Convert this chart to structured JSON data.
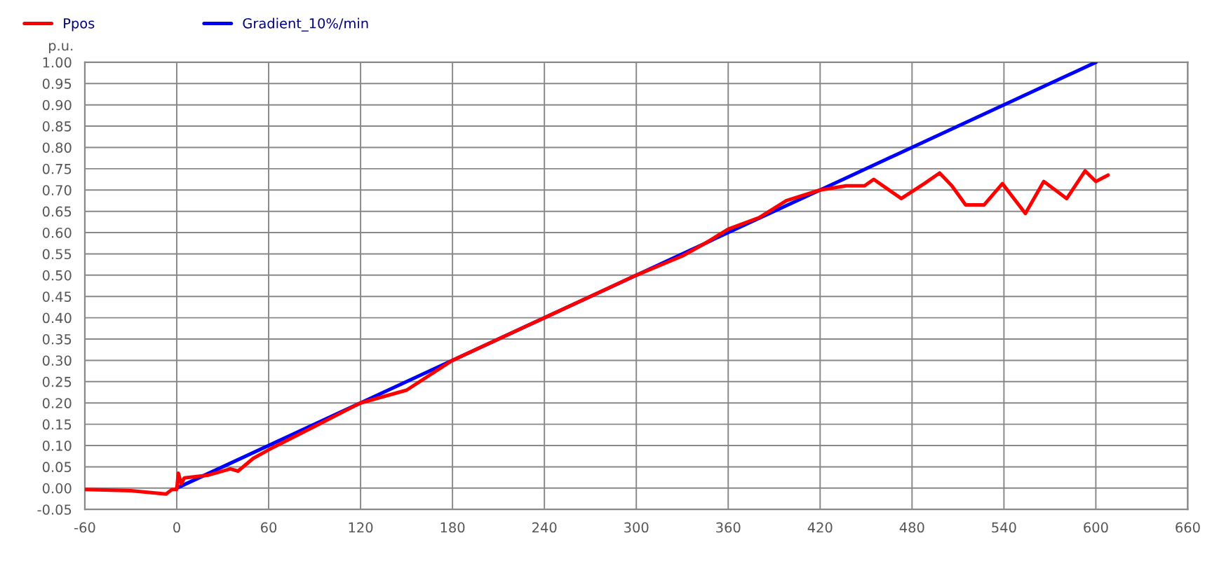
{
  "chart_data": {
    "type": "line",
    "ylabel": "p.u.",
    "xlim": [
      -60,
      660
    ],
    "xticks": [
      -60,
      0,
      60,
      120,
      180,
      240,
      300,
      360,
      420,
      480,
      540,
      600,
      660
    ],
    "ylim": [
      -0.05,
      1.0
    ],
    "yticks": [
      {
        "value": -0.05,
        "label": "-0.05"
      },
      {
        "value": 0,
        "label": "0.00"
      },
      {
        "value": 0.05,
        "label": "0.05"
      },
      {
        "value": 0.1,
        "label": "0.10"
      },
      {
        "value": 0.15,
        "label": "0.15"
      },
      {
        "value": 0.2,
        "label": "0.20"
      },
      {
        "value": 0.25,
        "label": "0.25"
      },
      {
        "value": 0.3,
        "label": "0.30"
      },
      {
        "value": 0.35,
        "label": "0.35"
      },
      {
        "value": 0.4,
        "label": "0.40"
      },
      {
        "value": 0.45,
        "label": "0.45"
      },
      {
        "value": 0.5,
        "label": "0.50"
      },
      {
        "value": 0.55,
        "label": "0.55"
      },
      {
        "value": 0.6,
        "label": "0.60"
      },
      {
        "value": 0.65,
        "label": "0.65"
      },
      {
        "value": 0.7,
        "label": "0.70"
      },
      {
        "value": 0.75,
        "label": "0.75"
      },
      {
        "value": 0.8,
        "label": "0.80"
      },
      {
        "value": 0.85,
        "label": "0.85"
      },
      {
        "value": 0.9,
        "label": "0.90"
      },
      {
        "value": 0.95,
        "label": "0.95"
      },
      {
        "value": 1.0,
        "label": "1.00"
      }
    ],
    "grid": true,
    "legend": "top left",
    "series": [
      {
        "name": "Ppos",
        "color": "#ff0000",
        "x": [
          -60,
          -30,
          -7,
          -3,
          0,
          1,
          3,
          5,
          20,
          35,
          40,
          50,
          60,
          90,
          120,
          150,
          180,
          210,
          240,
          270,
          300,
          330,
          345,
          360,
          380,
          398,
          420,
          437,
          449,
          455,
          473,
          488,
          498,
          506,
          515,
          527,
          539,
          554,
          566,
          581,
          593,
          600,
          608
        ],
        "values": [
          -0.003,
          -0.006,
          -0.014,
          -0.003,
          -0.003,
          0.035,
          0.01,
          0.024,
          0.03,
          0.045,
          0.04,
          0.07,
          0.09,
          0.145,
          0.2,
          0.23,
          0.3,
          0.35,
          0.4,
          0.45,
          0.5,
          0.545,
          0.575,
          0.608,
          0.635,
          0.675,
          0.7,
          0.71,
          0.71,
          0.725,
          0.68,
          0.715,
          0.74,
          0.71,
          0.665,
          0.665,
          0.715,
          0.645,
          0.72,
          0.68,
          0.745,
          0.72,
          0.735
        ]
      },
      {
        "name": "Gradient_10%/min",
        "color": "#0000ff",
        "x": [
          0,
          600
        ],
        "values": [
          0,
          1.0
        ]
      }
    ]
  }
}
